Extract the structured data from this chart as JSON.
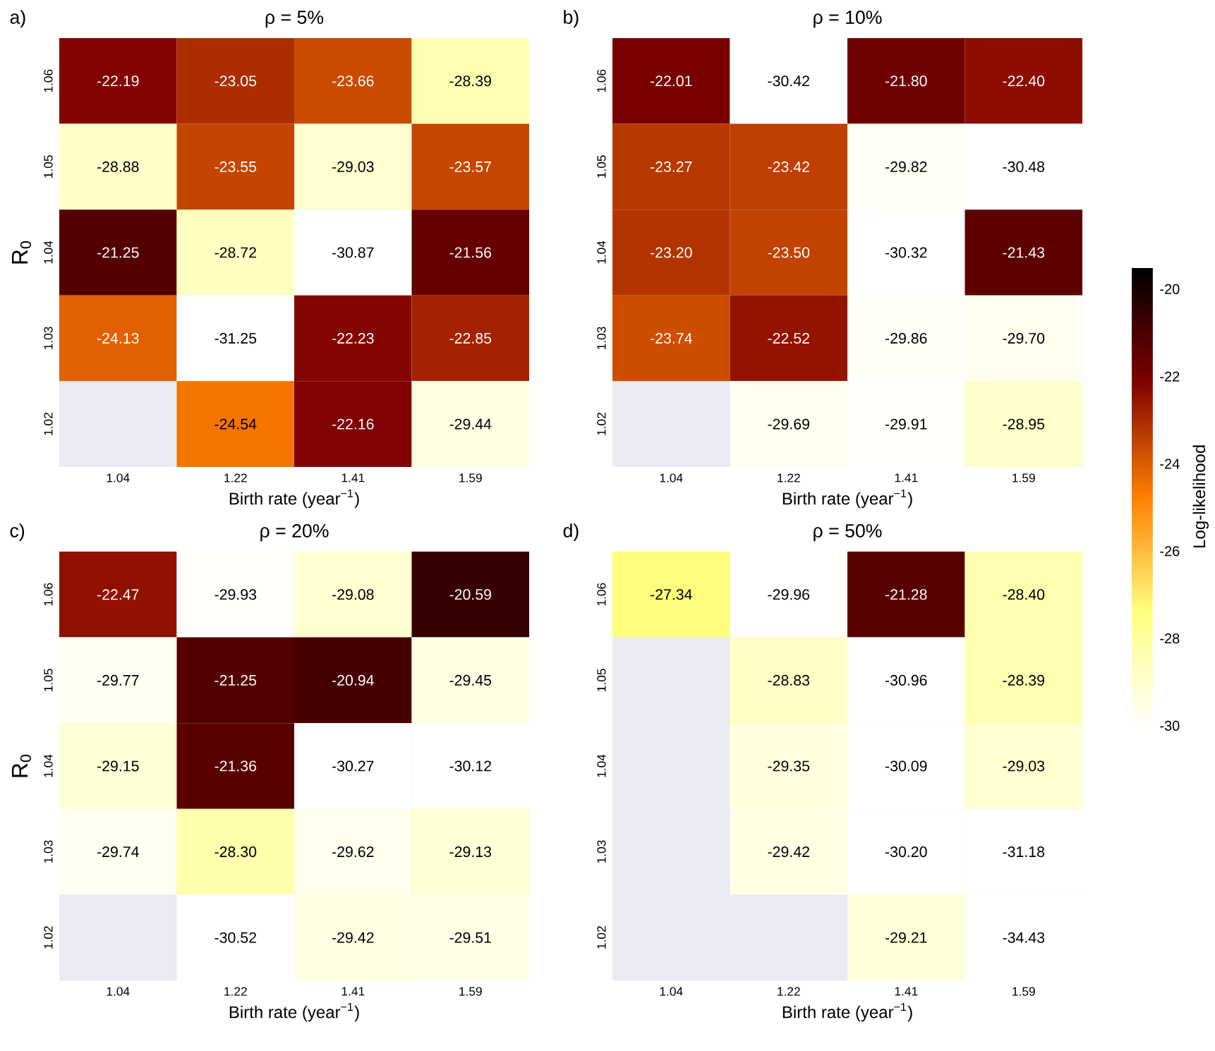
{
  "chart_data": [
    {
      "type": "heatmap",
      "title": "ρ = 5%",
      "annotations": [
        "a)"
      ],
      "xlabel": "Birth rate (year$^{−1}$)",
      "ylabel": "R$_{0}$",
      "categories": [
        "1.04",
        "1.22",
        "1.41",
        "1.59"
      ],
      "y_categories": [
        "1.06",
        "1.05",
        "1.04",
        "1.03",
        "1.02"
      ],
      "cells": [
        [
          -22.19,
          -23.05,
          -23.66,
          -28.39
        ],
        [
          -28.88,
          -23.55,
          -29.03,
          -23.57
        ],
        [
          -21.25,
          -28.72,
          -30.87,
          -21.56
        ],
        [
          -24.13,
          -31.25,
          -22.23,
          -22.85
        ],
        [
          null,
          -24.54,
          -22.16,
          -29.44
        ]
      ],
      "cell_labels": [
        [
          "-22.19",
          "-23.05",
          "-23.66",
          "-28.39"
        ],
        [
          "-28.88",
          "-23.55",
          "-29.03",
          "-23.57"
        ],
        [
          "-21.25",
          "-28.72",
          "-30.87",
          "-21.56"
        ],
        [
          "-24.13",
          "-31.25",
          "-22.23",
          "-22.85"
        ],
        [
          null,
          "-24.54",
          "-22.16",
          "-29.44"
        ]
      ]
    },
    {
      "type": "heatmap",
      "title": "ρ = 10%",
      "annotations": [
        "b)"
      ],
      "xlabel": "Birth rate (year$^{−1}$)",
      "categories": [
        "1.04",
        "1.22",
        "1.41",
        "1.59"
      ],
      "y_categories": [
        "1.06",
        "1.05",
        "1.04",
        "1.03",
        "1.02"
      ],
      "clim": [
        -30,
        -19.5
      ],
      "cticks": [
        -30,
        -28,
        -26,
        -24,
        -22,
        -20
      ],
      "clabel": "Log-likelihood",
      "cells": [
        [
          -22.01,
          -30.42,
          -21.8,
          -22.4
        ],
        [
          -23.27,
          -23.42,
          -29.82,
          -30.48
        ],
        [
          -23.2,
          -23.5,
          -30.32,
          -21.43
        ],
        [
          -23.74,
          -22.52,
          -29.86,
          -29.7
        ],
        [
          null,
          -29.69,
          -29.91,
          -28.95
        ]
      ],
      "cell_labels": [
        [
          "-22.01",
          "-30.42",
          "-21.80",
          "-22.40"
        ],
        [
          "-23.27",
          "-23.42",
          "-29.82",
          "-30.48"
        ],
        [
          "-23.20",
          "-23.50",
          "-30.32",
          "-21.43"
        ],
        [
          "-23.74",
          "-22.52",
          "-29.86",
          "-29.70"
        ],
        [
          null,
          "-29.69",
          "-29.91",
          "-28.95"
        ]
      ]
    },
    {
      "type": "heatmap",
      "title": "ρ = 20%",
      "annotations": [
        "c)"
      ],
      "xlabel": "Birth rate (year$^{−1}$)",
      "ylabel": "R$_{0}$",
      "categories": [
        "1.04",
        "1.22",
        "1.41",
        "1.59"
      ],
      "y_categories": [
        "1.06",
        "1.05",
        "1.04",
        "1.03",
        "1.02"
      ],
      "cells": [
        [
          -22.47,
          -29.93,
          -29.08,
          -20.59
        ],
        [
          -29.77,
          -21.25,
          -20.94,
          -29.45
        ],
        [
          -29.15,
          -21.36,
          -30.27,
          -30.12
        ],
        [
          -29.74,
          -28.3,
          -29.62,
          -29.13
        ],
        [
          null,
          -30.52,
          -29.42,
          -29.51
        ]
      ],
      "cell_labels": [
        [
          "-22.47",
          "-29.93",
          "-29.08",
          "-20.59"
        ],
        [
          "-29.77",
          "-21.25",
          "-20.94",
          "-29.45"
        ],
        [
          "-29.15",
          "-21.36",
          "-30.27",
          "-30.12"
        ],
        [
          "-29.74",
          "-28.30",
          "-29.62",
          "-29.13"
        ],
        [
          null,
          "-30.52",
          "-29.42",
          "-29.51"
        ]
      ]
    },
    {
      "type": "heatmap",
      "title": "ρ = 50%",
      "annotations": [
        "d)"
      ],
      "xlabel": "Birth rate (year$^{−1}$)",
      "categories": [
        "1.04",
        "1.22",
        "1.41",
        "1.59"
      ],
      "y_categories": [
        "1.06",
        "1.05",
        "1.04",
        "1.03",
        "1.02"
      ],
      "cells": [
        [
          -27.34,
          -29.96,
          -21.28,
          -28.4
        ],
        [
          null,
          -28.83,
          -30.96,
          -28.39
        ],
        [
          null,
          -29.35,
          -30.09,
          -29.03
        ],
        [
          null,
          -29.42,
          -30.2,
          -31.18
        ],
        [
          null,
          null,
          -29.21,
          -34.43
        ]
      ],
      "cell_labels": [
        [
          "-27.34",
          "-29.96",
          "-21.28",
          "-28.40"
        ],
        [
          null,
          "-28.83",
          "-30.96",
          "-28.39"
        ],
        [
          null,
          "-29.35",
          "-30.09",
          "-29.03"
        ],
        [
          null,
          "-29.42",
          "-30.20",
          "-31.18"
        ],
        [
          null,
          null,
          "-29.21",
          "-34.43"
        ]
      ]
    }
  ]
}
